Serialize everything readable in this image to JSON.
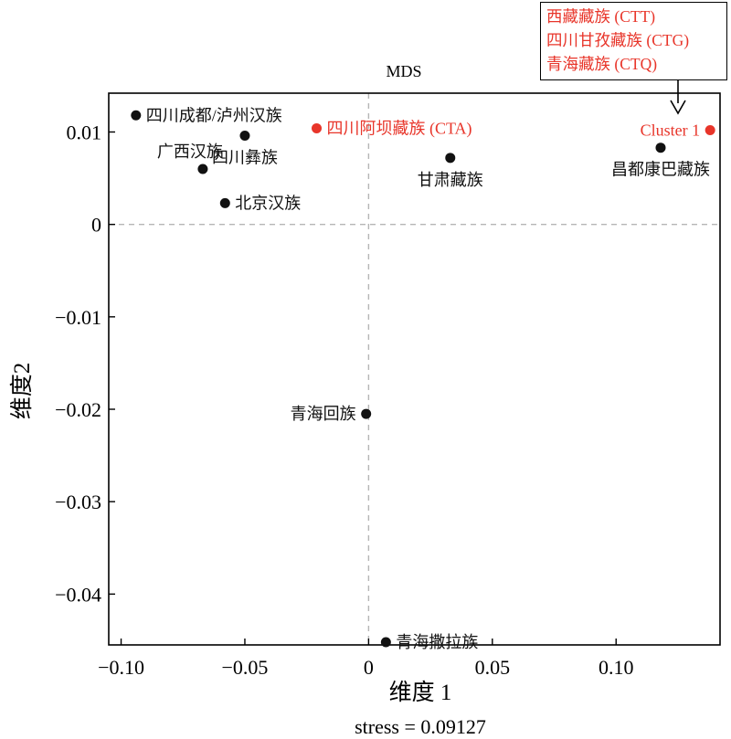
{
  "chart_data": {
    "type": "scatter",
    "title": "MDS",
    "xlabel": "维度 1",
    "ylabel": "维度2",
    "footer": "stress = 0.09127",
    "xlim": [
      -0.105,
      0.142
    ],
    "ylim": [
      -0.0455,
      0.0142
    ],
    "xticks": [
      -0.1,
      -0.05,
      0,
      0.05,
      0.1
    ],
    "xtick_labels": [
      "−0.10",
      "−0.05",
      "0",
      "0.05",
      "0.10"
    ],
    "yticks": [
      0.01,
      0,
      -0.01,
      -0.02,
      -0.03,
      -0.04
    ],
    "ytick_labels": [
      "0.01",
      "0",
      "−0.01",
      "−0.02",
      "−0.03",
      "−0.04"
    ],
    "reference_lines": {
      "x": 0,
      "y": 0,
      "style": "dashed",
      "color": "#b5b5b5"
    },
    "colors": {
      "default": "#111111",
      "highlight": "#e8352a"
    },
    "points": [
      {
        "label": "四川成都/泸州汉族",
        "x": -0.094,
        "y": 0.0118,
        "color": "#111111",
        "anchor": "right-of"
      },
      {
        "label": "广西汉族",
        "x": -0.067,
        "y": 0.006,
        "color": "#111111",
        "anchor": "above-left"
      },
      {
        "label": "四川彝族",
        "x": -0.05,
        "y": 0.0096,
        "color": "#111111",
        "anchor": "below"
      },
      {
        "label": "北京汉族",
        "x": -0.058,
        "y": 0.0023,
        "color": "#111111",
        "anchor": "right-of"
      },
      {
        "label": "四川阿坝藏族 (CTA)",
        "x": -0.021,
        "y": 0.0104,
        "color": "#e8352a",
        "anchor": "right-of"
      },
      {
        "label": "甘肃藏族",
        "x": 0.033,
        "y": 0.0072,
        "color": "#111111",
        "anchor": "below"
      },
      {
        "label": "昌都康巴藏族",
        "x": 0.118,
        "y": 0.0083,
        "color": "#111111",
        "anchor": "below"
      },
      {
        "label": "Cluster 1",
        "x": 0.138,
        "y": 0.0102,
        "color": "#e8352a",
        "anchor": "left-of"
      },
      {
        "label": "青海回族",
        "x": -0.001,
        "y": -0.0205,
        "color": "#111111",
        "anchor": "left-of"
      },
      {
        "label": "青海撒拉族",
        "x": 0.007,
        "y": -0.0452,
        "color": "#111111",
        "anchor": "right-of"
      }
    ],
    "cluster_note": {
      "items": [
        "西藏藏族 (CTT)",
        "四川甘孜藏族 (CTG)",
        "青海藏族 (CTQ)"
      ],
      "color": "#e8352a",
      "points_to": "Cluster 1"
    }
  }
}
